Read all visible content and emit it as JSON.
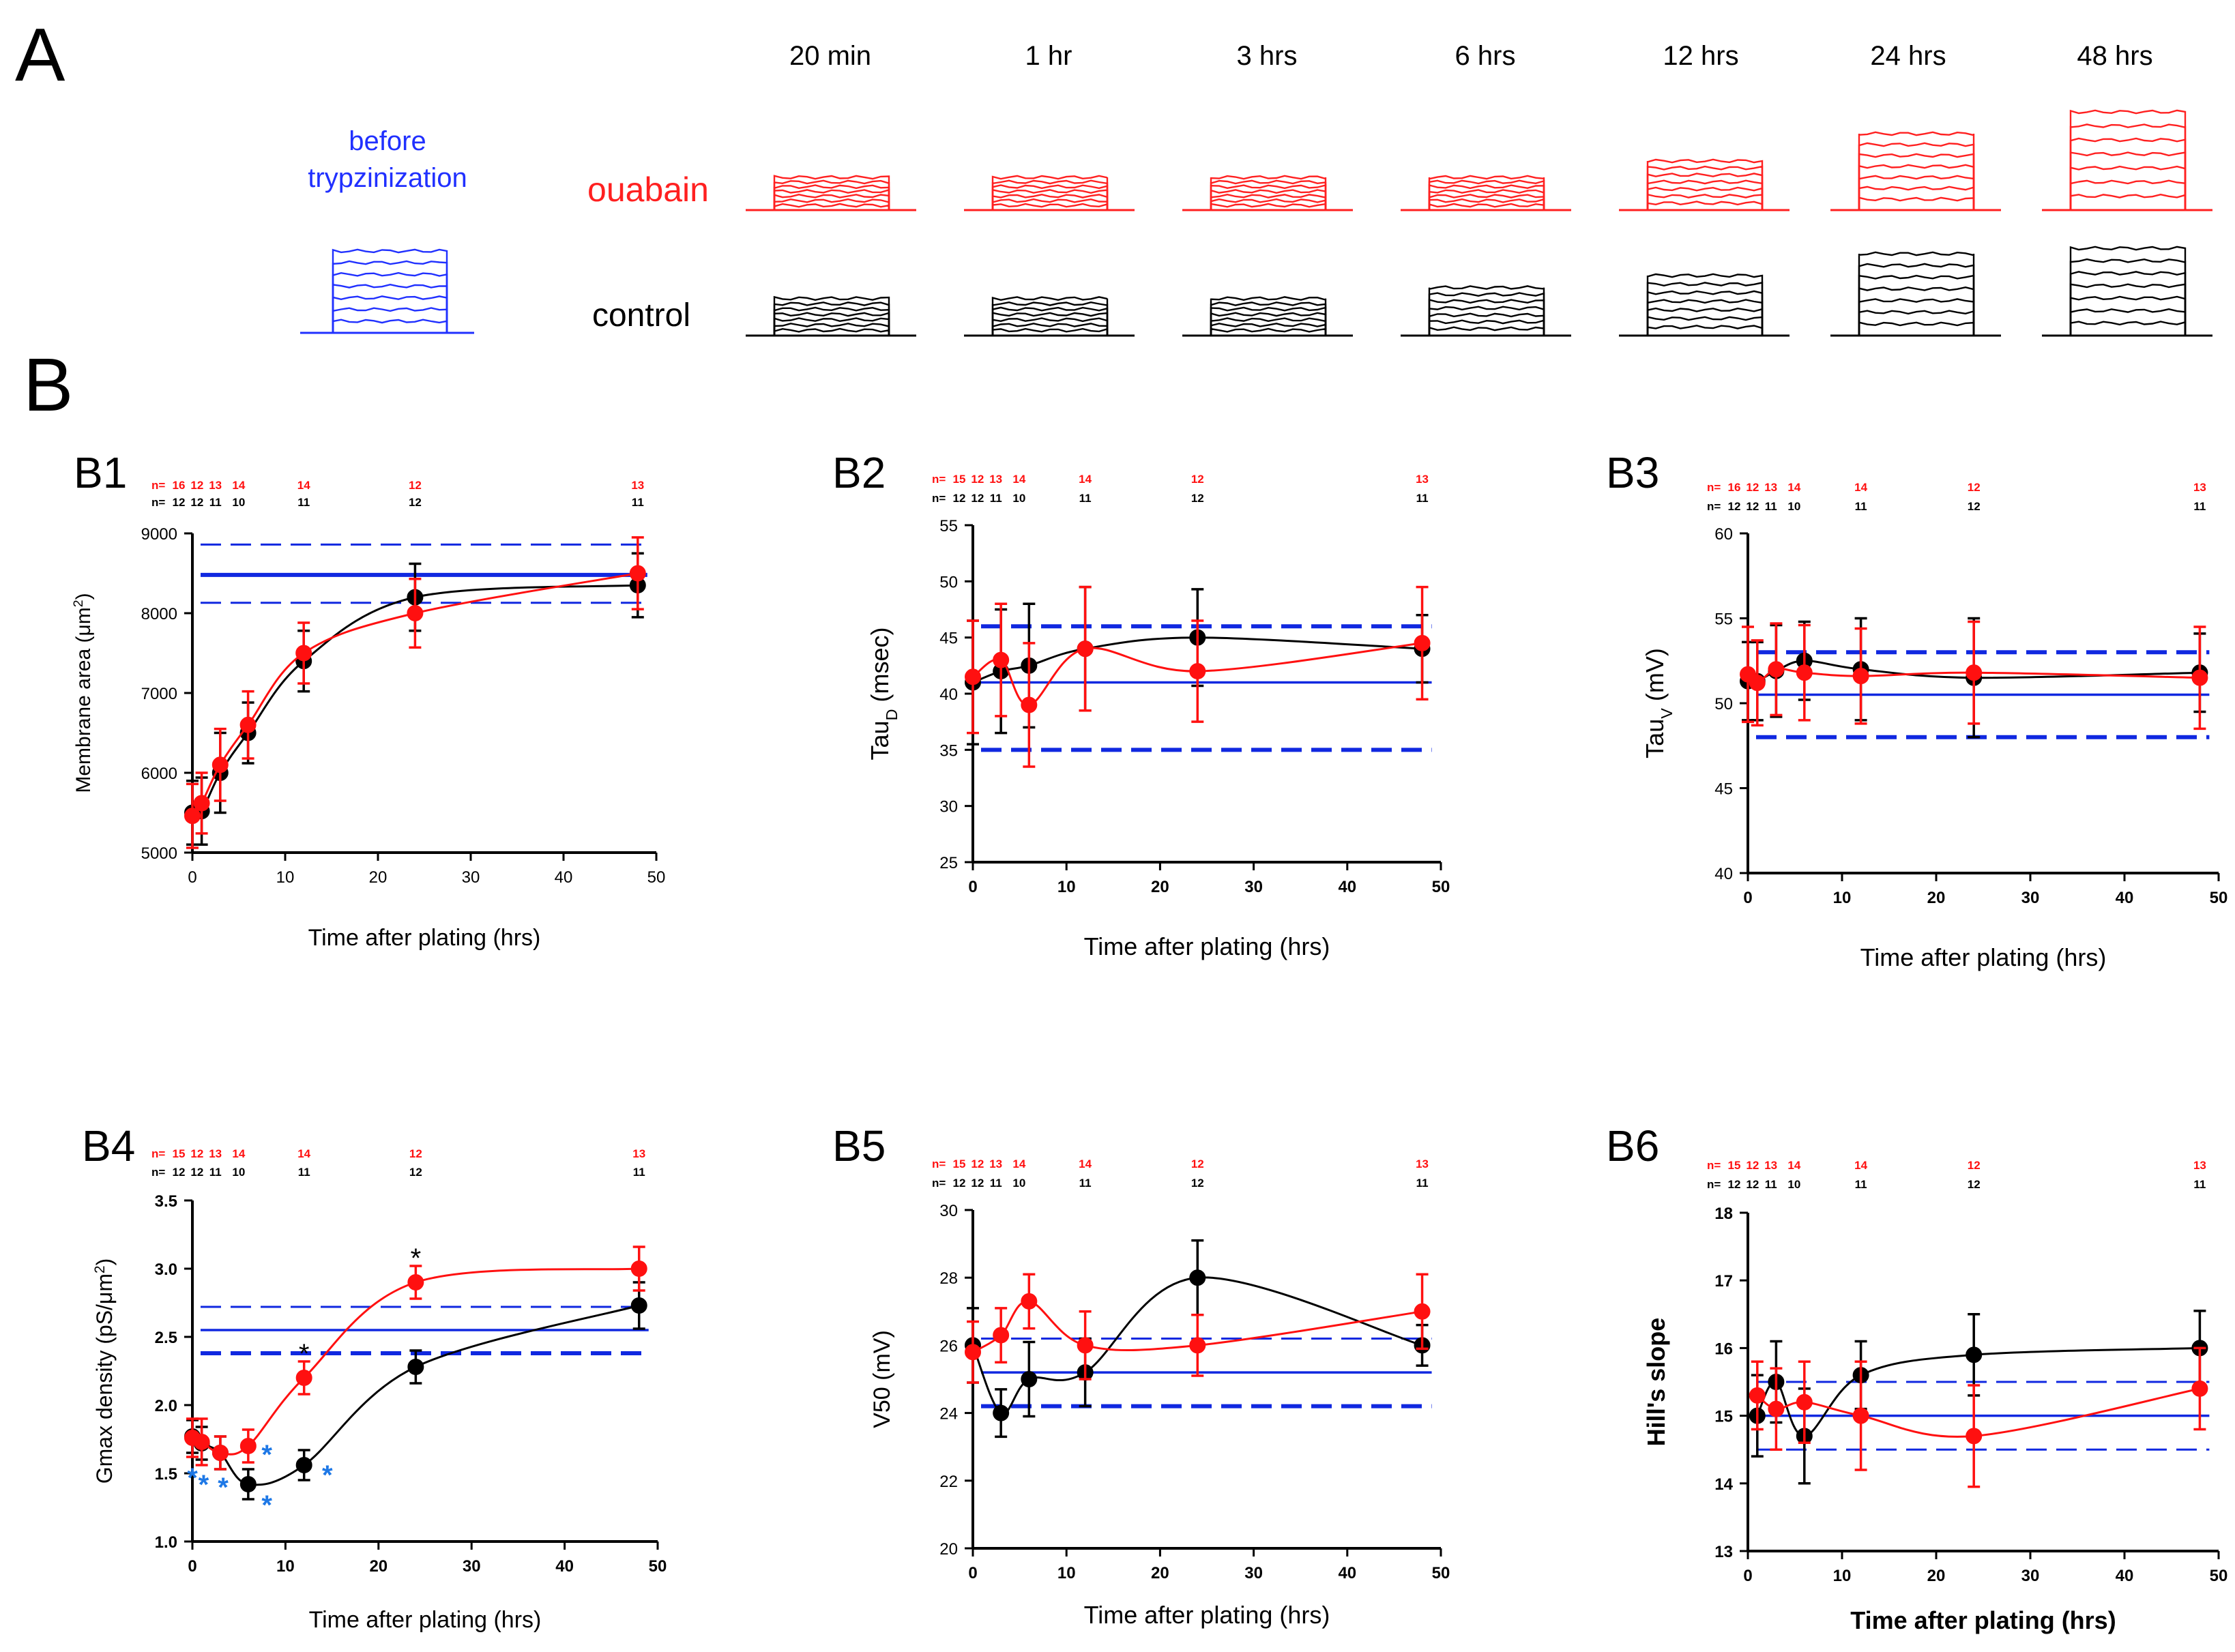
{
  "panel_letters": {
    "A": "A",
    "B": "B"
  },
  "traces": {
    "time_labels": [
      "20 min",
      "1 hr",
      "3 hrs",
      "6 hrs",
      "12 hrs",
      "24 hrs",
      "48 hrs"
    ],
    "before_label": [
      "before",
      "trypzinization"
    ],
    "ouabain_label": "ouabain",
    "control_label": "control",
    "ouabain_amplitudes": [
      0.3,
      0.3,
      0.3,
      0.3,
      0.45,
      0.7,
      0.9
    ],
    "control_amplitudes": [
      0.34,
      0.34,
      0.34,
      0.44,
      0.55,
      0.75,
      0.8
    ],
    "before_amplitude": 0.75,
    "colors": {
      "ouabain": "#ff2020",
      "control": "#000000",
      "before": "#2030ff"
    }
  },
  "chart_data": [
    {
      "id": "B1",
      "type": "line",
      "label": "B1",
      "xlabel": "Time after plating (hrs)",
      "ylabel_parts": [
        "Membrane area (",
        "μm",
        "2",
        ")"
      ],
      "xlim": [
        0,
        50
      ],
      "ylim": [
        5000,
        9000
      ],
      "xticks": [
        "0",
        "10",
        "20",
        "30",
        "40",
        "50"
      ],
      "yticks": [
        "5000",
        "6000",
        "7000",
        "8000",
        "9000"
      ],
      "n_labels": {
        "red_prefix": "n=",
        "red": [
          "16",
          "12",
          "13",
          "14",
          "14",
          "12",
          "13"
        ],
        "black_prefix": "n=",
        "black": [
          "12",
          "12",
          "11",
          "10",
          "11",
          "12",
          "11"
        ]
      },
      "n_x": [
        0,
        1.5,
        3,
        6,
        12,
        24,
        48
      ],
      "hlines": {
        "solid": 8480,
        "dashed": [
          8860,
          8130
        ],
        "dashed_weight": "thin"
      },
      "series": [
        {
          "name": "control",
          "color": "#000000",
          "x": [
            0,
            1,
            3,
            6,
            12,
            24,
            48
          ],
          "y": [
            5500,
            5520,
            6000,
            6500,
            7400,
            8200,
            8350
          ],
          "err": [
            400,
            420,
            500,
            380,
            380,
            420,
            400
          ]
        },
        {
          "name": "ouabain",
          "color": "#ff1010",
          "x": [
            0,
            1,
            3,
            6,
            12,
            24,
            48
          ],
          "y": [
            5460,
            5620,
            6100,
            6600,
            7500,
            8000,
            8500
          ],
          "err": [
            400,
            380,
            450,
            420,
            380,
            430,
            450
          ]
        }
      ]
    },
    {
      "id": "B2",
      "type": "line",
      "label": "B2",
      "xlabel": "Time after plating (hrs)",
      "ylabel_parts": [
        "Tau",
        "D",
        " (msec)"
      ],
      "xlim": [
        0,
        50
      ],
      "ylim": [
        25,
        55
      ],
      "xticks": [
        "0",
        "10",
        "20",
        "30",
        "40",
        "50"
      ],
      "yticks": [
        "25",
        "30",
        "35",
        "40",
        "45",
        "50",
        "55"
      ],
      "n_labels": {
        "red_prefix": "n=",
        "red": [
          "15",
          "12",
          "13",
          "14",
          "14",
          "12",
          "13"
        ],
        "black_prefix": "n=",
        "black": [
          "12",
          "12",
          "11",
          "10",
          "11",
          "12",
          "11"
        ]
      },
      "n_x": [
        0,
        1.5,
        3,
        6,
        12,
        24,
        48
      ],
      "hlines": {
        "solid": 41,
        "dashed": [
          46,
          35
        ],
        "dashed_weight": "thick"
      },
      "series": [
        {
          "name": "control",
          "color": "#000000",
          "x": [
            0,
            3,
            6,
            12,
            24,
            48
          ],
          "y": [
            41,
            42,
            42.5,
            44,
            45,
            44
          ],
          "err": [
            5.5,
            5.5,
            5.5,
            5.5,
            4.3,
            3
          ]
        },
        {
          "name": "ouabain",
          "color": "#ff1010",
          "x": [
            0,
            3,
            6,
            12,
            24,
            48
          ],
          "y": [
            41.5,
            43,
            39,
            44,
            42,
            44.5
          ],
          "err": [
            5,
            5,
            5.5,
            5.5,
            4.5,
            5
          ]
        }
      ]
    },
    {
      "id": "B3",
      "type": "line",
      "label": "B3",
      "xlabel": "Time after plating (hrs)",
      "ylabel_parts": [
        "Tau",
        "V",
        " (mV)"
      ],
      "xlim": [
        0,
        50
      ],
      "ylim": [
        40,
        60
      ],
      "xticks": [
        "0",
        "10",
        "20",
        "30",
        "40",
        "50"
      ],
      "yticks": [
        "40",
        "45",
        "50",
        "55",
        "60"
      ],
      "n_labels": {
        "red_prefix": "n=",
        "red": [
          "16",
          "12",
          "13",
          "14",
          "14",
          "12",
          "13"
        ],
        "black_prefix": "n=",
        "black": [
          "12",
          "12",
          "11",
          "10",
          "11",
          "12",
          "11"
        ]
      },
      "n_x": [
        0,
        1.5,
        3,
        6,
        12,
        24,
        48
      ],
      "hlines": {
        "solid": 50.5,
        "dashed": [
          53,
          48
        ],
        "dashed_weight": "thick"
      },
      "series": [
        {
          "name": "control",
          "color": "#000000",
          "x": [
            0,
            1,
            3,
            6,
            12,
            24,
            48
          ],
          "y": [
            51.3,
            51.3,
            51.9,
            52.5,
            52,
            51.5,
            51.8
          ],
          "err": [
            2.3,
            2.3,
            2.7,
            2.3,
            3,
            3.5,
            2.3
          ]
        },
        {
          "name": "ouabain",
          "color": "#ff1010",
          "x": [
            0,
            1,
            3,
            6,
            12,
            24,
            48
          ],
          "y": [
            51.7,
            51.2,
            52,
            51.8,
            51.6,
            51.8,
            51.5
          ],
          "err": [
            2.8,
            2.5,
            2.7,
            2.8,
            2.8,
            3,
            3
          ]
        }
      ]
    },
    {
      "id": "B4",
      "type": "line",
      "label": "B4",
      "xlabel": "Time after plating (hrs)",
      "ylabel_parts": [
        "Gmax density (pS/",
        "μm",
        "2",
        ")"
      ],
      "xlim": [
        0,
        50
      ],
      "ylim": [
        1.0,
        3.5
      ],
      "xticks": [
        "0",
        "10",
        "20",
        "30",
        "40",
        "50"
      ],
      "yticks": [
        "1.0",
        "1.5",
        "2.0",
        "2.5",
        "3.0",
        "3.5"
      ],
      "n_labels": {
        "red_prefix": "n=",
        "red": [
          "15",
          "12",
          "13",
          "14",
          "14",
          "12",
          "13"
        ],
        "black_prefix": "n=",
        "black": [
          "12",
          "12",
          "11",
          "10",
          "11",
          "12",
          "11"
        ]
      },
      "n_x": [
        0,
        1.5,
        3,
        6,
        12,
        24,
        48
      ],
      "hlines": {
        "solid": 2.55,
        "dashed": [
          2.72,
          2.38
        ],
        "dashed_weight": "mixed"
      },
      "series": [
        {
          "name": "control",
          "color": "#000000",
          "x": [
            0,
            1,
            3,
            6,
            12,
            24,
            48
          ],
          "y": [
            1.77,
            1.72,
            1.65,
            1.42,
            1.56,
            2.28,
            2.73
          ],
          "err": [
            0.12,
            0.12,
            0.12,
            0.11,
            0.11,
            0.12,
            0.17
          ]
        },
        {
          "name": "ouabain",
          "color": "#ff1010",
          "x": [
            0,
            1,
            3,
            6,
            12,
            24,
            48
          ],
          "y": [
            1.76,
            1.73,
            1.65,
            1.7,
            2.2,
            2.9,
            3.0
          ],
          "err": [
            0.14,
            0.17,
            0.12,
            0.12,
            0.12,
            0.12,
            0.16
          ]
        }
      ],
      "annotations": {
        "black_stars": [
          {
            "x": 12,
            "y": 2.39,
            "text": "*"
          },
          {
            "x": 24,
            "y": 3.09,
            "text": "*"
          }
        ],
        "blue_stars": [
          {
            "x": 0,
            "y": 1.48,
            "text": "*"
          },
          {
            "x": 1.2,
            "y": 1.43,
            "text": "*"
          },
          {
            "x": 3.3,
            "y": 1.41,
            "text": "*"
          },
          {
            "x": 8,
            "y": 1.65,
            "text": "*"
          },
          {
            "x": 8,
            "y": 1.28,
            "text": "*"
          },
          {
            "x": 14.5,
            "y": 1.5,
            "text": "*"
          }
        ]
      }
    },
    {
      "id": "B5",
      "type": "line",
      "label": "B5",
      "xlabel": "Time after plating (hrs)",
      "ylabel_parts": [
        "V50 (mV)"
      ],
      "xlim": [
        0,
        50
      ],
      "ylim": [
        20,
        30
      ],
      "xticks": [
        "0",
        "10",
        "20",
        "30",
        "40",
        "50"
      ],
      "yticks": [
        "20",
        "22",
        "24",
        "26",
        "28",
        "30"
      ],
      "n_labels": {
        "red_prefix": "n=",
        "red": [
          "15",
          "12",
          "13",
          "14",
          "14",
          "12",
          "13"
        ],
        "black_prefix": "n=",
        "black": [
          "12",
          "12",
          "11",
          "10",
          "11",
          "12",
          "11"
        ]
      },
      "n_x": [
        0,
        1.5,
        3,
        6,
        12,
        24,
        48
      ],
      "hlines": {
        "solid": 25.2,
        "dashed": [
          26.2,
          24.2
        ],
        "dashed_weight": "mixed"
      },
      "series": [
        {
          "name": "control",
          "color": "#000000",
          "x": [
            0,
            3,
            6,
            12,
            24,
            48
          ],
          "y": [
            26,
            24,
            25,
            25.2,
            28,
            26
          ],
          "err": [
            1.1,
            0.7,
            1.1,
            1.0,
            1.1,
            0.6
          ]
        },
        {
          "name": "ouabain",
          "color": "#ff1010",
          "x": [
            0,
            3,
            6,
            12,
            24,
            48
          ],
          "y": [
            25.8,
            26.3,
            27.3,
            26,
            26,
            27
          ],
          "err": [
            0.9,
            0.8,
            0.8,
            1.0,
            0.9,
            1.1
          ]
        }
      ]
    },
    {
      "id": "B6",
      "type": "line",
      "label": "B6",
      "xlabel": "Time after plating (hrs)",
      "ylabel_parts": [
        "Hill's slope"
      ],
      "xlim": [
        0,
        50
      ],
      "ylim": [
        13,
        18
      ],
      "xticks": [
        "0",
        "10",
        "20",
        "30",
        "40",
        "50"
      ],
      "yticks": [
        "13",
        "14",
        "15",
        "16",
        "17",
        "18"
      ],
      "n_labels": {
        "red_prefix": "n=",
        "red": [
          "15",
          "12",
          "13",
          "14",
          "14",
          "12",
          "13"
        ],
        "black_prefix": "n=",
        "black": [
          "12",
          "12",
          "11",
          "10",
          "11",
          "12",
          "11"
        ]
      },
      "n_x": [
        0,
        1.5,
        3,
        6,
        12,
        24,
        48
      ],
      "hlines": {
        "solid": 15.0,
        "dashed": [
          15.5,
          14.5
        ],
        "dashed_weight": "thin"
      },
      "series": [
        {
          "name": "control",
          "color": "#000000",
          "x": [
            1,
            3,
            6,
            12,
            24,
            48
          ],
          "y": [
            15,
            15.5,
            14.7,
            15.6,
            15.9,
            16
          ],
          "err": [
            0.6,
            0.6,
            0.7,
            0.5,
            0.6,
            0.55
          ]
        },
        {
          "name": "ouabain",
          "color": "#ff1010",
          "x": [
            1,
            3,
            6,
            12,
            24,
            48
          ],
          "y": [
            15.3,
            15.1,
            15.2,
            15,
            14.7,
            15.4
          ],
          "err": [
            0.5,
            0.6,
            0.6,
            0.8,
            0.75,
            0.6
          ]
        }
      ]
    }
  ]
}
